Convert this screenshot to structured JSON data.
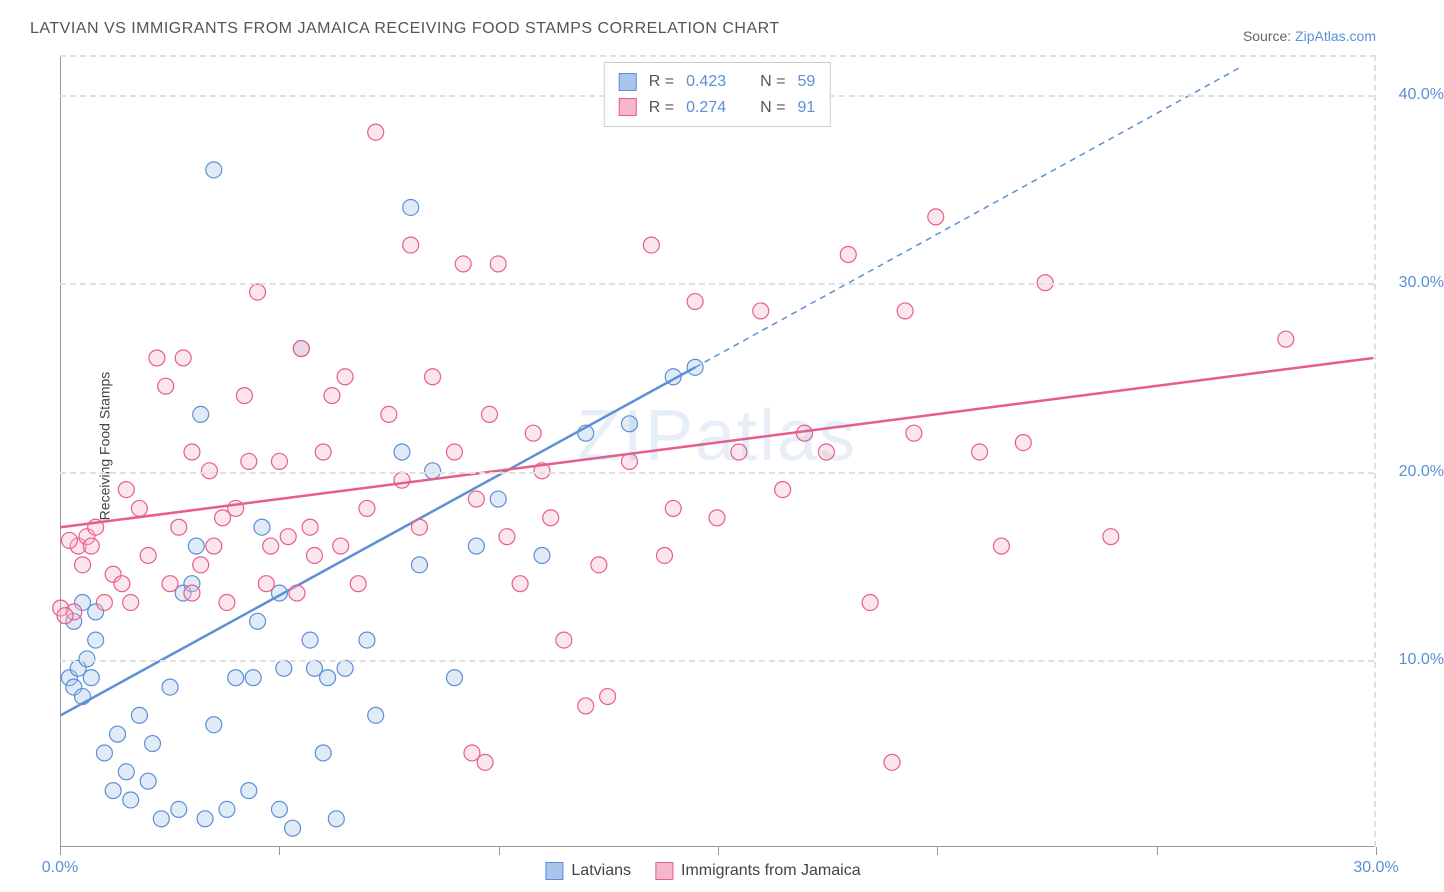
{
  "title": "LATVIAN VS IMMIGRANTS FROM JAMAICA RECEIVING FOOD STAMPS CORRELATION CHART",
  "source": {
    "prefix": "Source:",
    "link": "ZipAtlas.com"
  },
  "watermark": "ZIPatlas",
  "chart": {
    "type": "scatter",
    "y_label": "Receiving Food Stamps",
    "xlim": [
      0,
      30
    ],
    "ylim": [
      0,
      42
    ],
    "x_ticks": [
      0,
      5,
      10,
      15,
      20,
      25,
      30
    ],
    "y_ticks": [
      10,
      20,
      30,
      40
    ],
    "x_tick_labels": {
      "0": "0.0%",
      "30": "30.0%"
    },
    "y_tick_label_suffix": ".0%",
    "grid_color": "#e0e0e0",
    "background_color": "#ffffff",
    "marker_radius": 8,
    "marker_stroke_width": 1.2,
    "marker_fill_opacity": 0.35,
    "label_fontsize": 14,
    "tick_fontsize": 16,
    "tick_color": "#5b8fd6"
  },
  "series": [
    {
      "name": "Latvians",
      "color": "#5b8fd6",
      "fill": "#a8c5ec",
      "stroke": "#5b8fd6",
      "R": "0.423",
      "N": "59",
      "trend": {
        "x1": 0,
        "y1": 7,
        "x2": 14.5,
        "y2": 25.5,
        "extend_x2": 27,
        "extend_y2": 41.5,
        "dashed_extend": true
      },
      "points": [
        [
          0.2,
          9
        ],
        [
          0.3,
          8.5
        ],
        [
          0.4,
          9.5
        ],
        [
          0.5,
          8
        ],
        [
          0.6,
          10
        ],
        [
          0.7,
          9
        ],
        [
          0.8,
          11
        ],
        [
          0.3,
          12
        ],
        [
          0.5,
          13
        ],
        [
          0.8,
          12.5
        ],
        [
          1.0,
          5
        ],
        [
          1.2,
          3
        ],
        [
          1.3,
          6
        ],
        [
          1.5,
          4
        ],
        [
          1.6,
          2.5
        ],
        [
          1.8,
          7
        ],
        [
          2.0,
          3.5
        ],
        [
          2.1,
          5.5
        ],
        [
          2.3,
          1.5
        ],
        [
          2.5,
          8.5
        ],
        [
          2.7,
          2
        ],
        [
          2.8,
          13.5
        ],
        [
          3.0,
          14
        ],
        [
          3.1,
          16
        ],
        [
          3.2,
          23
        ],
        [
          3.3,
          1.5
        ],
        [
          3.5,
          6.5
        ],
        [
          3.5,
          36
        ],
        [
          3.8,
          2
        ],
        [
          4.0,
          9
        ],
        [
          4.3,
          3
        ],
        [
          4.4,
          9
        ],
        [
          4.5,
          12
        ],
        [
          4.6,
          17
        ],
        [
          5.0,
          2
        ],
        [
          5.0,
          13.5
        ],
        [
          5.1,
          9.5
        ],
        [
          5.3,
          1
        ],
        [
          5.5,
          26.5
        ],
        [
          5.7,
          11
        ],
        [
          5.8,
          9.5
        ],
        [
          6.0,
          5
        ],
        [
          6.1,
          9
        ],
        [
          6.3,
          1.5
        ],
        [
          6.5,
          9.5
        ],
        [
          7.0,
          11
        ],
        [
          7.2,
          7
        ],
        [
          7.8,
          21
        ],
        [
          8.0,
          34
        ],
        [
          8.2,
          15
        ],
        [
          8.5,
          20
        ],
        [
          9.0,
          9
        ],
        [
          9.5,
          16
        ],
        [
          10.0,
          18.5
        ],
        [
          11.0,
          15.5
        ],
        [
          12.0,
          22
        ],
        [
          13.0,
          22.5
        ],
        [
          14.0,
          25
        ],
        [
          14.5,
          25.5
        ]
      ]
    },
    {
      "name": "Immigrants from Jamaica",
      "color": "#e85d8a",
      "fill": "#f5b8cb",
      "stroke": "#e85d8a",
      "R": "0.274",
      "N": "91",
      "trend": {
        "x1": 0,
        "y1": 17,
        "x2": 30,
        "y2": 26,
        "dashed_extend": false
      },
      "points": [
        [
          0.3,
          12.5
        ],
        [
          0.4,
          16
        ],
        [
          0.5,
          15
        ],
        [
          0.6,
          16.5
        ],
        [
          0.7,
          16
        ],
        [
          0.8,
          17
        ],
        [
          1.0,
          13
        ],
        [
          1.2,
          14.5
        ],
        [
          1.4,
          14
        ],
        [
          1.5,
          19
        ],
        [
          1.6,
          13
        ],
        [
          1.8,
          18
        ],
        [
          2.0,
          15.5
        ],
        [
          2.2,
          26
        ],
        [
          2.4,
          24.5
        ],
        [
          2.5,
          14
        ],
        [
          2.7,
          17
        ],
        [
          2.8,
          26
        ],
        [
          3.0,
          13.5
        ],
        [
          3.2,
          15
        ],
        [
          3.4,
          20
        ],
        [
          3.5,
          16
        ],
        [
          3.7,
          17.5
        ],
        [
          3.8,
          13
        ],
        [
          4.0,
          18
        ],
        [
          4.2,
          24
        ],
        [
          4.5,
          29.5
        ],
        [
          4.7,
          14
        ],
        [
          4.8,
          16
        ],
        [
          5.0,
          20.5
        ],
        [
          5.2,
          16.5
        ],
        [
          5.4,
          13.5
        ],
        [
          5.5,
          26.5
        ],
        [
          5.7,
          17
        ],
        [
          5.8,
          15.5
        ],
        [
          6.0,
          21
        ],
        [
          6.2,
          24
        ],
        [
          6.4,
          16
        ],
        [
          6.5,
          25
        ],
        [
          6.8,
          14
        ],
        [
          7.0,
          18
        ],
        [
          7.2,
          38
        ],
        [
          7.5,
          23
        ],
        [
          7.8,
          19.5
        ],
        [
          8.0,
          32
        ],
        [
          8.2,
          17
        ],
        [
          8.5,
          25
        ],
        [
          9.0,
          21
        ],
        [
          9.2,
          31
        ],
        [
          9.4,
          5
        ],
        [
          9.5,
          18.5
        ],
        [
          9.7,
          4.5
        ],
        [
          9.8,
          23
        ],
        [
          10.0,
          31
        ],
        [
          10.2,
          16.5
        ],
        [
          10.5,
          14
        ],
        [
          10.8,
          22
        ],
        [
          11.0,
          20
        ],
        [
          11.2,
          17.5
        ],
        [
          11.5,
          11
        ],
        [
          12.0,
          7.5
        ],
        [
          12.3,
          15
        ],
        [
          12.5,
          8
        ],
        [
          13.0,
          20.5
        ],
        [
          13.5,
          32
        ],
        [
          13.8,
          15.5
        ],
        [
          14.0,
          18
        ],
        [
          14.5,
          29
        ],
        [
          15.0,
          17.5
        ],
        [
          15.5,
          21
        ],
        [
          16.0,
          28.5
        ],
        [
          16.5,
          19
        ],
        [
          17.0,
          22
        ],
        [
          17.5,
          21
        ],
        [
          18.0,
          31.5
        ],
        [
          18.5,
          13
        ],
        [
          19.0,
          4.5
        ],
        [
          19.3,
          28.5
        ],
        [
          19.5,
          22
        ],
        [
          20.0,
          33.5
        ],
        [
          21.0,
          21
        ],
        [
          21.5,
          16
        ],
        [
          22.0,
          21.5
        ],
        [
          22.5,
          30
        ],
        [
          24.0,
          16.5
        ],
        [
          28.0,
          27
        ],
        [
          0.0,
          12.7
        ],
        [
          0.1,
          12.3
        ],
        [
          0.2,
          16.3
        ],
        [
          3.0,
          21
        ],
        [
          4.3,
          20.5
        ]
      ]
    }
  ],
  "legend_stats_labels": {
    "R": "R =",
    "N": "N ="
  }
}
